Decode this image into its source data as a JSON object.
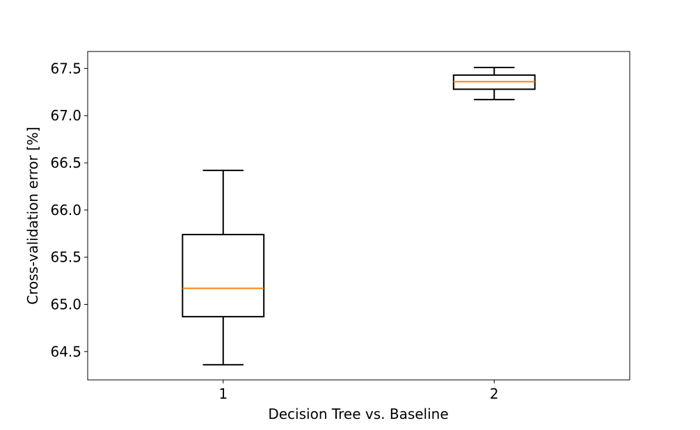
{
  "chart_data": {
    "type": "box",
    "title": "",
    "xlabel": "Decision Tree   vs.   Baseline",
    "ylabel": "Cross-validation error [%]",
    "categories": [
      "1",
      "2"
    ],
    "ylim": [
      64.2,
      67.68
    ],
    "xlim": [
      0.5,
      2.5
    ],
    "yticks": [
      "64.5",
      "65.0",
      "65.5",
      "66.0",
      "66.5",
      "67.0",
      "67.5"
    ],
    "boxes": [
      {
        "label": "1",
        "whisker_low": 64.36,
        "q1": 64.87,
        "median": 65.17,
        "q3": 65.74,
        "whisker_high": 66.42
      },
      {
        "label": "2",
        "whisker_low": 67.17,
        "q1": 67.28,
        "median": 67.36,
        "q3": 67.43,
        "whisker_high": 67.51
      }
    ],
    "grid": false,
    "colors": {
      "box": "#000000",
      "median": "#ff7f0e"
    }
  }
}
